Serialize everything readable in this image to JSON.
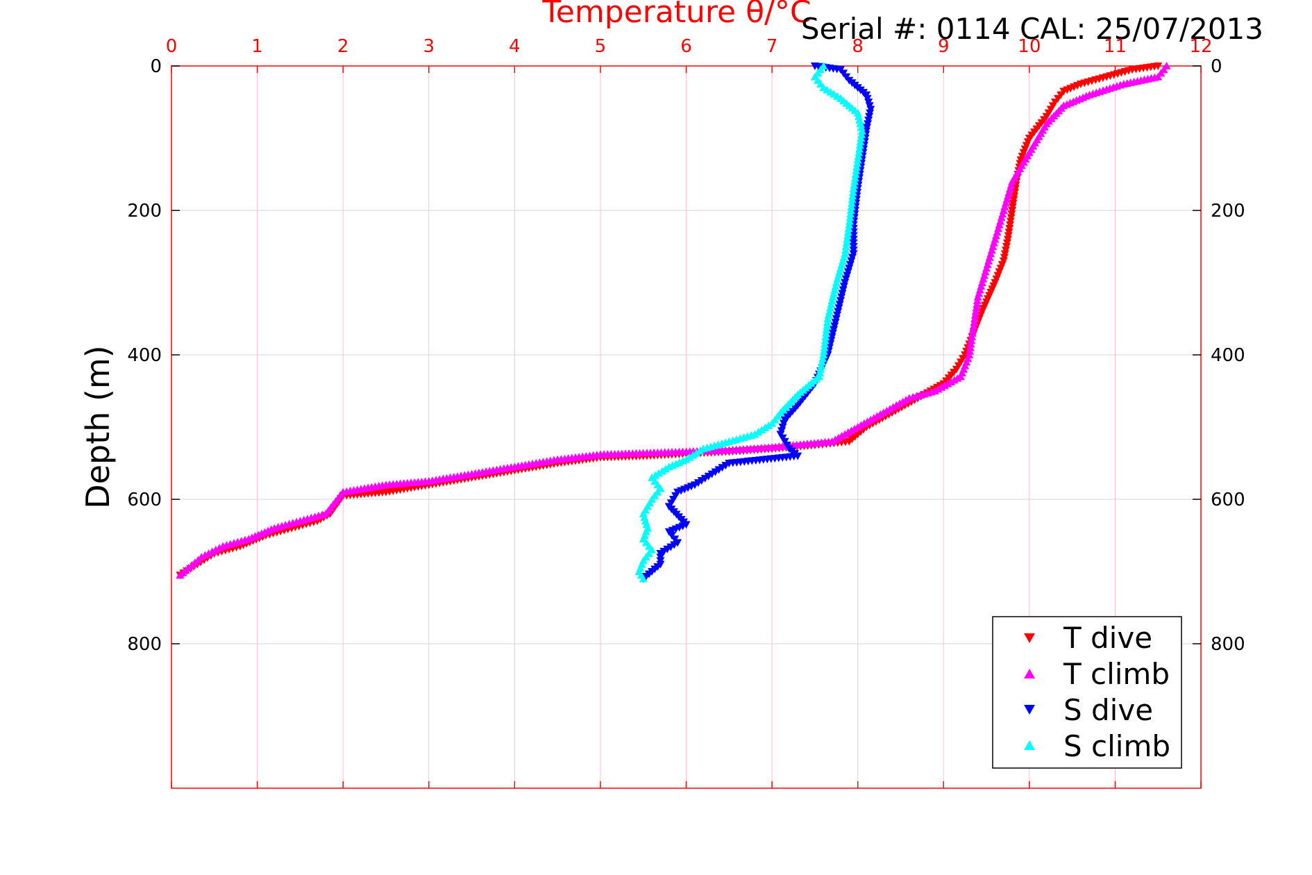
{
  "chart_data": {
    "type": "scatter",
    "title": "Temperature θ/°C",
    "header_note": "Serial #: 0114  CAL: 25/07/2013",
    "ylabel": "Depth (m)",
    "xlim": [
      0,
      12
    ],
    "ylim": [
      0,
      1000
    ],
    "y_reversed": true,
    "x_ticks": [
      0,
      1,
      2,
      3,
      4,
      5,
      6,
      7,
      8,
      9,
      10,
      11,
      12
    ],
    "y_ticks": [
      0,
      200,
      400,
      600,
      800
    ],
    "grid": true,
    "legend_placement": "bottom-right",
    "colors": {
      "axis": "#ff0000",
      "vgrid": "#ffc0cb",
      "hgrid": "#d3d3d3",
      "text": "#000000"
    },
    "series": [
      {
        "name": "T dive",
        "color": "#ff0000",
        "marker": "triangle-down",
        "points": [
          [
            11.5,
            0
          ],
          [
            11.2,
            5
          ],
          [
            10.9,
            15
          ],
          [
            10.6,
            25
          ],
          [
            10.4,
            35
          ],
          [
            10.3,
            50
          ],
          [
            10.2,
            70
          ],
          [
            10.0,
            100
          ],
          [
            9.9,
            130
          ],
          [
            9.85,
            160
          ],
          [
            9.8,
            200
          ],
          [
            9.75,
            240
          ],
          [
            9.7,
            270
          ],
          [
            9.6,
            300
          ],
          [
            9.45,
            340
          ],
          [
            9.35,
            370
          ],
          [
            9.25,
            400
          ],
          [
            9.15,
            420
          ],
          [
            9.0,
            440
          ],
          [
            8.7,
            460
          ],
          [
            8.4,
            480
          ],
          [
            8.1,
            500
          ],
          [
            7.9,
            520
          ],
          [
            7.5,
            525
          ],
          [
            7.0,
            530
          ],
          [
            6.5,
            534
          ],
          [
            6.0,
            537
          ],
          [
            5.5,
            540
          ],
          [
            5.0,
            542
          ],
          [
            4.5,
            550
          ],
          [
            4.0,
            560
          ],
          [
            3.5,
            570
          ],
          [
            3.0,
            580
          ],
          [
            2.5,
            590
          ],
          [
            2.0,
            595
          ],
          [
            1.85,
            620
          ],
          [
            1.7,
            630
          ],
          [
            1.4,
            640
          ],
          [
            1.1,
            650
          ],
          [
            0.8,
            665
          ],
          [
            0.5,
            675
          ],
          [
            0.3,
            690
          ],
          [
            0.1,
            705
          ]
        ]
      },
      {
        "name": "T climb",
        "color": "#ff00ff",
        "marker": "triangle-up",
        "points": [
          [
            11.6,
            0
          ],
          [
            11.5,
            15
          ],
          [
            11.1,
            25
          ],
          [
            10.7,
            40
          ],
          [
            10.4,
            55
          ],
          [
            10.2,
            80
          ],
          [
            10.0,
            120
          ],
          [
            9.8,
            160
          ],
          [
            9.7,
            200
          ],
          [
            9.6,
            240
          ],
          [
            9.5,
            280
          ],
          [
            9.4,
            320
          ],
          [
            9.35,
            360
          ],
          [
            9.3,
            400
          ],
          [
            9.2,
            430
          ],
          [
            8.9,
            450
          ],
          [
            8.6,
            460
          ],
          [
            8.3,
            480
          ],
          [
            8.0,
            500
          ],
          [
            7.7,
            520
          ],
          [
            7.0,
            528
          ],
          [
            6.5,
            532
          ],
          [
            6.0,
            534
          ],
          [
            5.5,
            536
          ],
          [
            5.0,
            538
          ],
          [
            4.5,
            545
          ],
          [
            4.0,
            555
          ],
          [
            3.5,
            565
          ],
          [
            3.0,
            575
          ],
          [
            2.5,
            580
          ],
          [
            2.0,
            590
          ],
          [
            1.8,
            620
          ],
          [
            1.5,
            630
          ],
          [
            1.2,
            640
          ],
          [
            0.9,
            655
          ],
          [
            0.6,
            665
          ],
          [
            0.35,
            680
          ],
          [
            0.2,
            695
          ],
          [
            0.1,
            705
          ]
        ]
      },
      {
        "name": "S dive",
        "color": "#0000ff",
        "marker": "triangle-down",
        "points": [
          [
            7.5,
            0
          ],
          [
            7.8,
            5
          ],
          [
            7.9,
            20
          ],
          [
            8.1,
            40
          ],
          [
            8.15,
            60
          ],
          [
            8.1,
            90
          ],
          [
            8.05,
            130
          ],
          [
            8.0,
            170
          ],
          [
            7.95,
            220
          ],
          [
            7.95,
            260
          ],
          [
            7.85,
            300
          ],
          [
            7.75,
            350
          ],
          [
            7.65,
            400
          ],
          [
            7.5,
            440
          ],
          [
            7.3,
            470
          ],
          [
            7.15,
            490
          ],
          [
            7.1,
            510
          ],
          [
            7.2,
            530
          ],
          [
            7.3,
            540
          ],
          [
            6.9,
            545
          ],
          [
            6.5,
            550
          ],
          [
            6.3,
            565
          ],
          [
            6.1,
            580
          ],
          [
            5.9,
            590
          ],
          [
            5.8,
            610
          ],
          [
            6.0,
            635
          ],
          [
            5.8,
            645
          ],
          [
            5.9,
            660
          ],
          [
            5.7,
            675
          ],
          [
            5.7,
            690
          ],
          [
            5.6,
            700
          ],
          [
            5.5,
            710
          ]
        ]
      },
      {
        "name": "S climb",
        "color": "#00ffff",
        "marker": "triangle-up",
        "points": [
          [
            7.6,
            0
          ],
          [
            7.5,
            15
          ],
          [
            7.6,
            30
          ],
          [
            7.8,
            45
          ],
          [
            8.0,
            65
          ],
          [
            8.05,
            90
          ],
          [
            8.0,
            130
          ],
          [
            7.95,
            170
          ],
          [
            7.9,
            220
          ],
          [
            7.85,
            260
          ],
          [
            7.75,
            300
          ],
          [
            7.65,
            350
          ],
          [
            7.6,
            400
          ],
          [
            7.55,
            430
          ],
          [
            7.3,
            455
          ],
          [
            7.1,
            480
          ],
          [
            7.0,
            495
          ],
          [
            6.8,
            510
          ],
          [
            6.5,
            520
          ],
          [
            6.2,
            530
          ],
          [
            6.0,
            545
          ],
          [
            5.8,
            555
          ],
          [
            5.6,
            570
          ],
          [
            5.7,
            585
          ],
          [
            5.6,
            600
          ],
          [
            5.5,
            620
          ],
          [
            5.55,
            640
          ],
          [
            5.5,
            655
          ],
          [
            5.6,
            670
          ],
          [
            5.5,
            685
          ],
          [
            5.45,
            700
          ],
          [
            5.5,
            710
          ]
        ]
      }
    ]
  }
}
